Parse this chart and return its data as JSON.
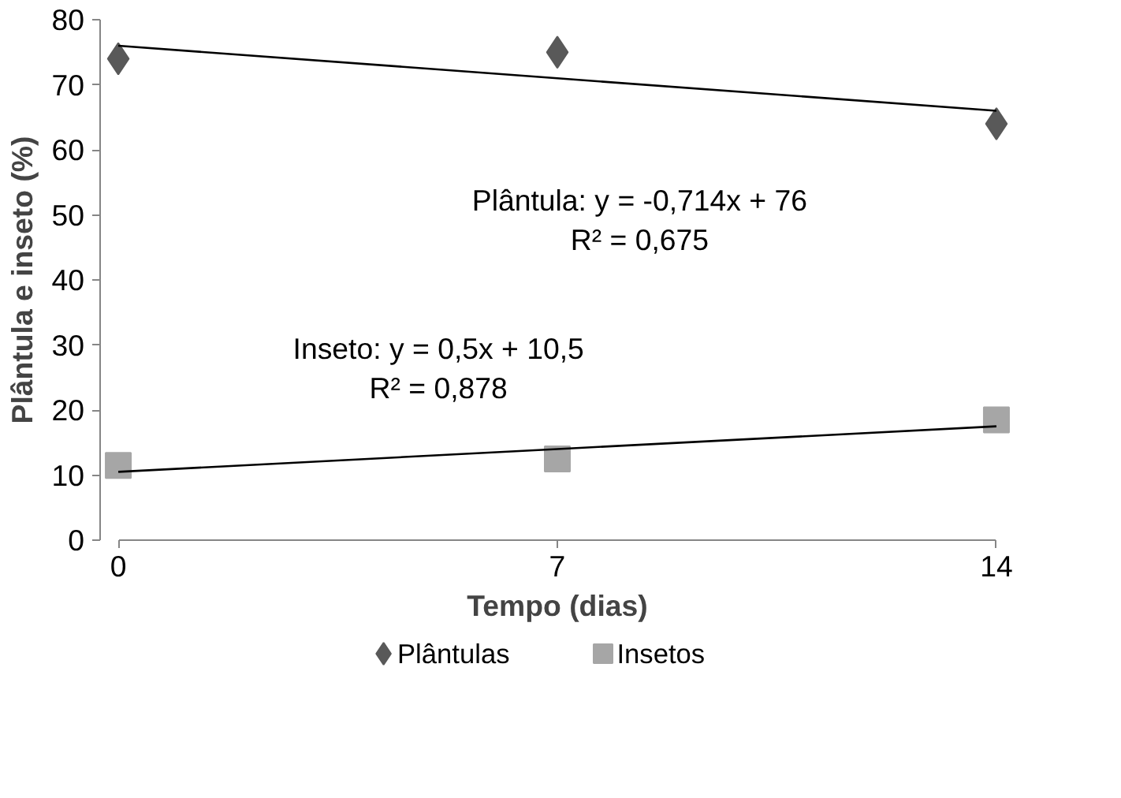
{
  "chart_data": {
    "type": "scatter",
    "xlabel": "Tempo (dias)",
    "ylabel": "Plântula e inseto (%)",
    "x": [
      0,
      7,
      14
    ],
    "xlim": [
      0,
      14
    ],
    "xticks": [
      0,
      7,
      14
    ],
    "ylim": [
      0,
      80
    ],
    "yticks": [
      0,
      10,
      20,
      30,
      40,
      50,
      60,
      70,
      80
    ],
    "grid": false,
    "legend": "bottom",
    "series": [
      {
        "name": "Plântulas",
        "color": "#595959",
        "marker": "diamond",
        "values": [
          74,
          75,
          64
        ]
      },
      {
        "name": "Insetos",
        "color": "#a6a6a6",
        "marker": "square",
        "values": [
          11.5,
          12.5,
          18.5
        ]
      },
      {
        "type": "line",
        "color": "#000000",
        "marker": "none",
        "values": [
          76,
          71.0,
          66.0
        ]
      },
      {
        "type": "line",
        "color": "#000000",
        "marker": "none",
        "values": [
          10.5,
          14,
          17.5
        ]
      }
    ],
    "annotations": [
      "Plântula: y = -0,714x + 76\nR² = 0,675",
      "Inseto: y = 0,5x + 10,5\nR² = 0,878"
    ]
  }
}
